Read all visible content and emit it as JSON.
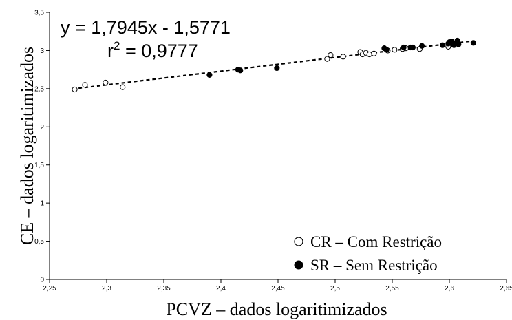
{
  "chart_data": {
    "type": "scatter",
    "xlabel": "PCVZ – dados logaritimizados",
    "ylabel": "CE – dados logaritimizados",
    "xlim": [
      2.25,
      2.65
    ],
    "ylim": [
      0,
      3.5
    ],
    "x_ticks": [
      "2,25",
      "2,3",
      "2,35",
      "2,4",
      "2,45",
      "2,5",
      "2,55",
      "2,6",
      "2,65"
    ],
    "y_ticks": [
      "0",
      "0,5",
      "1",
      "1,5",
      "2",
      "2,5",
      "3",
      "3,5"
    ],
    "grid": false,
    "legend_position": "bottom-right",
    "equation": "y = 1,7945x - 1,5771",
    "r2_prefix": "r",
    "r2_sup": "2",
    "r2_value": " = 0,9777",
    "trendline": {
      "slope": 1.7945,
      "intercept": -1.5771,
      "x_range": [
        2.27,
        2.62
      ],
      "style": "dashed"
    },
    "series": [
      {
        "name": "CR – Com Restrição",
        "marker": "open-circle",
        "points": [
          [
            2.272,
            2.49
          ],
          [
            2.281,
            2.55
          ],
          [
            2.299,
            2.58
          ],
          [
            2.314,
            2.52
          ],
          [
            2.493,
            2.89
          ],
          [
            2.496,
            2.94
          ],
          [
            2.507,
            2.92
          ],
          [
            2.522,
            2.98
          ],
          [
            2.524,
            2.95
          ],
          [
            2.527,
            2.97
          ],
          [
            2.53,
            2.95
          ],
          [
            2.534,
            2.96
          ],
          [
            2.546,
            3.0
          ],
          [
            2.552,
            3.01
          ],
          [
            2.559,
            3.02
          ],
          [
            2.562,
            3.03
          ],
          [
            2.574,
            3.02
          ],
          [
            2.599,
            3.05
          ],
          [
            2.603,
            3.08
          ]
        ]
      },
      {
        "name": "SR – Sem Restrição",
        "marker": "filled-circle",
        "points": [
          [
            2.39,
            2.68
          ],
          [
            2.415,
            2.75
          ],
          [
            2.417,
            2.74
          ],
          [
            2.449,
            2.77
          ],
          [
            2.543,
            3.03
          ],
          [
            2.545,
            3.01
          ],
          [
            2.56,
            3.04
          ],
          [
            2.566,
            3.04
          ],
          [
            2.568,
            3.04
          ],
          [
            2.576,
            3.06
          ],
          [
            2.594,
            3.07
          ],
          [
            2.599,
            3.09
          ],
          [
            2.6,
            3.11
          ],
          [
            2.602,
            3.12
          ],
          [
            2.604,
            3.07
          ],
          [
            2.606,
            3.1
          ],
          [
            2.607,
            3.13
          ],
          [
            2.608,
            3.08
          ],
          [
            2.621,
            3.1
          ]
        ]
      }
    ]
  }
}
